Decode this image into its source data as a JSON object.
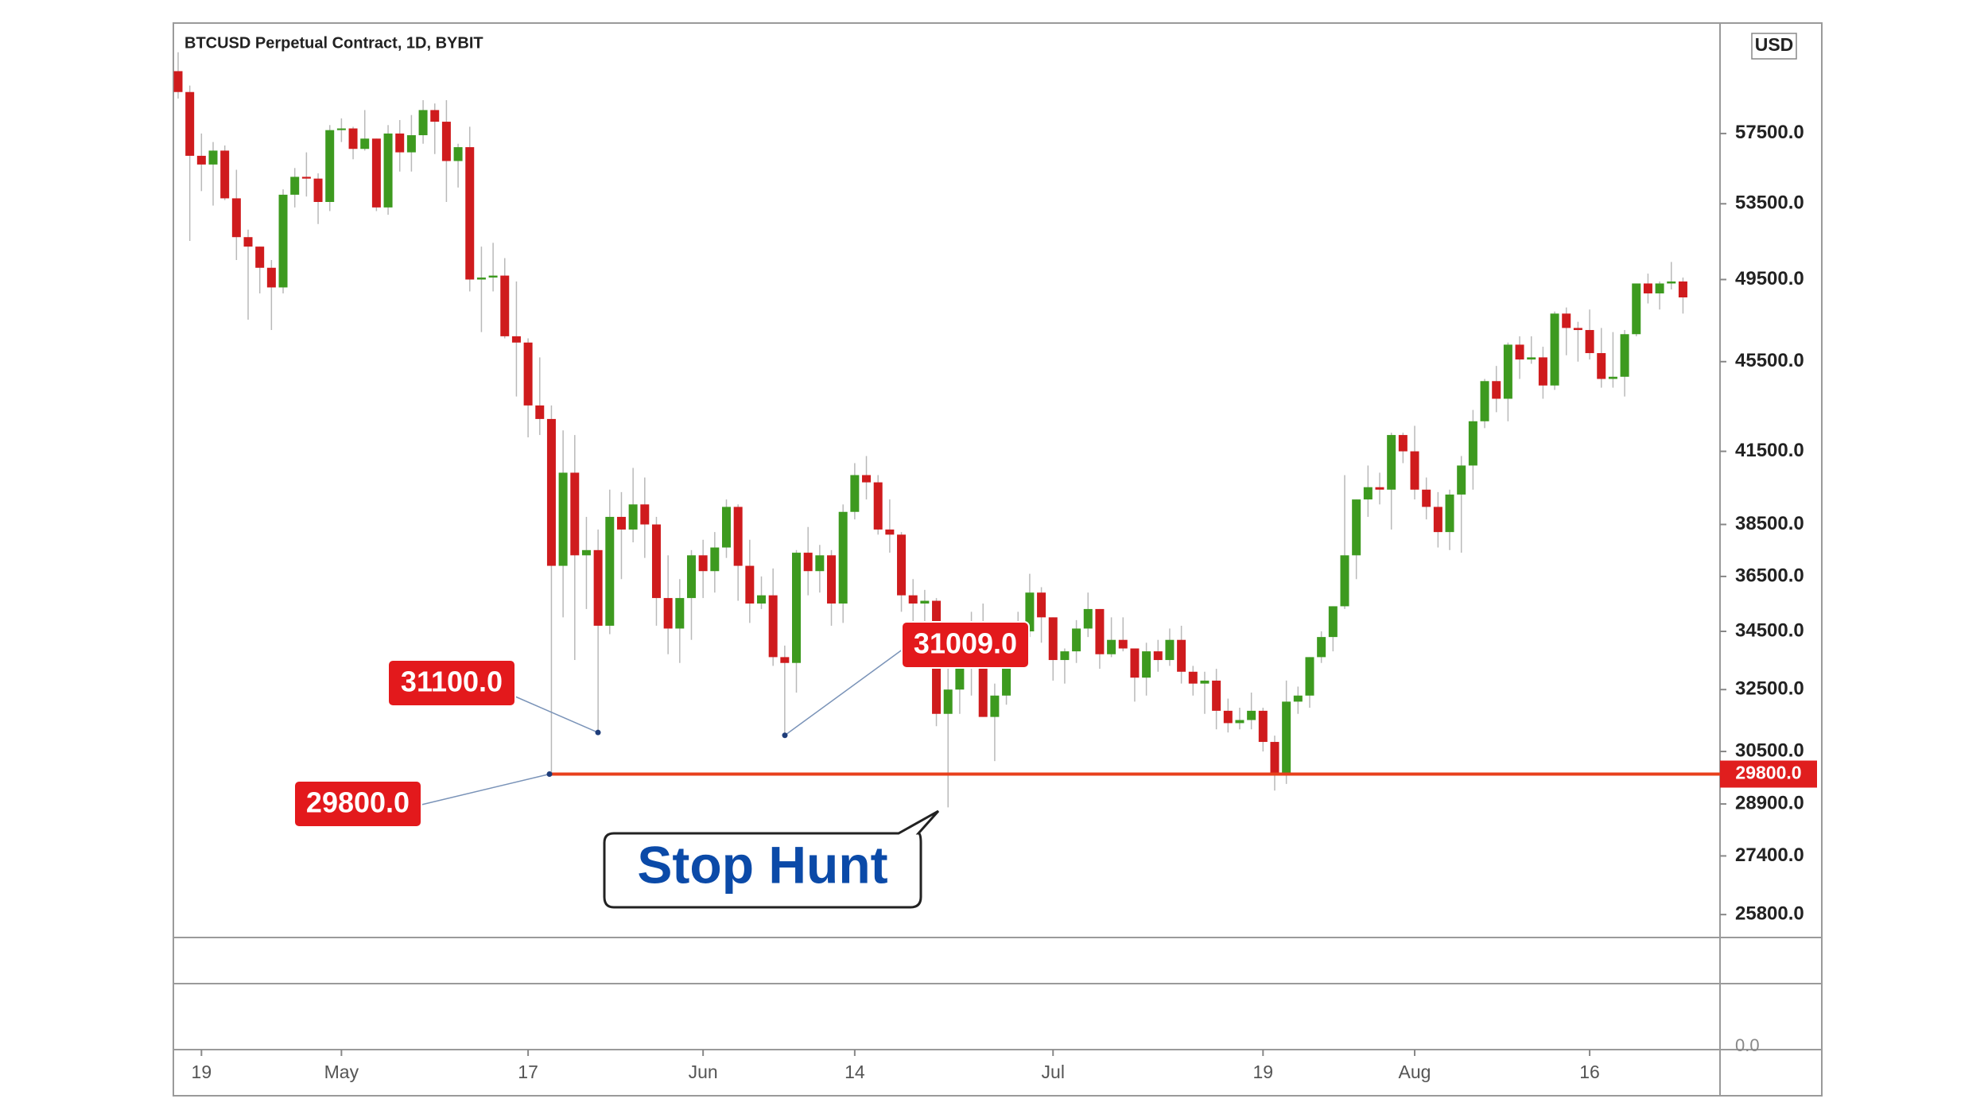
{
  "chart_data": {
    "type": "candlestick",
    "title": "BTCUSD Perpetual Contract, 1D, BYBIT",
    "currency": "USD",
    "up_color": "#3d9a1f",
    "down_color": "#cf1b1d",
    "log_scale": true,
    "ylim": [
      25200,
      64400
    ],
    "yticks": [
      {
        "value": 57500,
        "label": "57500.0"
      },
      {
        "value": 53500,
        "label": "53500.0"
      },
      {
        "value": 49500,
        "label": "49500.0"
      },
      {
        "value": 45500,
        "label": "45500.0"
      },
      {
        "value": 41500,
        "label": "41500.0"
      },
      {
        "value": 38500,
        "label": "38500.0"
      },
      {
        "value": 36500,
        "label": "36500.0"
      },
      {
        "value": 34500,
        "label": "34500.0"
      },
      {
        "value": 32500,
        "label": "32500.0"
      },
      {
        "value": 30500,
        "label": "30500.0"
      },
      {
        "value": 28900,
        "label": "28900.0"
      },
      {
        "value": 27400,
        "label": "27400.0"
      },
      {
        "value": 25800,
        "label": "25800.0"
      }
    ],
    "level": {
      "value": 29800,
      "label": "29800.0",
      "color": "#e8401c"
    },
    "lower_pane_tick": "0.0",
    "annotations": [
      {
        "value": 31100,
        "label": "31100.0"
      },
      {
        "value": 29800,
        "label": "29800.0"
      },
      {
        "value": 31009,
        "label": "31009.0"
      }
    ],
    "callout": "Stop Hunt",
    "categories": [
      null,
      null,
      "19",
      null,
      null,
      null,
      null,
      null,
      null,
      null,
      null,
      null,
      null,
      null,
      "May",
      null,
      null,
      null,
      null,
      null,
      null,
      null,
      null,
      null,
      null,
      null,
      null,
      null,
      null,
      null,
      "17",
      null,
      null,
      null,
      null,
      null,
      null,
      null,
      null,
      null,
      null,
      null,
      null,
      null,
      null,
      "Jun",
      null,
      null,
      null,
      null,
      null,
      null,
      null,
      null,
      null,
      null,
      null,
      null,
      "14",
      null,
      null,
      null,
      null,
      null,
      null,
      null,
      null,
      null,
      null,
      null,
      null,
      null,
      null,
      null,
      null,
      "Jul",
      null,
      null,
      null,
      null,
      null,
      null,
      null,
      null,
      null,
      null,
      null,
      null,
      null,
      null,
      null,
      null,
      null,
      "19",
      null,
      null,
      null,
      null,
      null,
      null,
      null,
      null,
      null,
      null,
      null,
      null,
      "Aug",
      null,
      null,
      null,
      null,
      null,
      null,
      null,
      null,
      null,
      null,
      null,
      null,
      null,
      null,
      "16",
      null,
      null,
      null,
      null,
      null,
      null,
      null,
      null
    ],
    "candles": [
      [
        61300,
        62500,
        59600,
        60000
      ],
      [
        60000,
        60400,
        51500,
        56200
      ],
      [
        56200,
        57500,
        54200,
        55700
      ],
      [
        55700,
        57000,
        53400,
        56500
      ],
      [
        56500,
        56800,
        53700,
        53800
      ],
      [
        53800,
        55400,
        50500,
        51700
      ],
      [
        51700,
        52100,
        47500,
        51200
      ],
      [
        51200,
        51200,
        48800,
        50100
      ],
      [
        50100,
        50500,
        47000,
        49100
      ],
      [
        49100,
        54300,
        48800,
        54000
      ],
      [
        54000,
        55500,
        53300,
        55000
      ],
      [
        55000,
        56400,
        53900,
        54900
      ],
      [
        54900,
        55200,
        52400,
        53600
      ],
      [
        53600,
        58000,
        53100,
        57700
      ],
      [
        57700,
        58400,
        57000,
        57800
      ],
      [
        57800,
        57900,
        56000,
        56600
      ],
      [
        56600,
        58900,
        56500,
        57200
      ],
      [
        57200,
        57200,
        53100,
        53300
      ],
      [
        53300,
        58000,
        52900,
        57500
      ],
      [
        57500,
        58300,
        55300,
        56400
      ],
      [
        56400,
        58600,
        55300,
        57400
      ],
      [
        57400,
        59500,
        56900,
        58900
      ],
      [
        58900,
        59300,
        56300,
        58200
      ],
      [
        58200,
        59500,
        53600,
        55900
      ],
      [
        55900,
        56900,
        54400,
        56700
      ],
      [
        56700,
        57900,
        48900,
        49500
      ],
      [
        49500,
        51200,
        46900,
        49600
      ],
      [
        49600,
        51400,
        48900,
        49700
      ],
      [
        49700,
        50600,
        46600,
        46700
      ],
      [
        46700,
        49400,
        43900,
        46400
      ],
      [
        46400,
        46600,
        42100,
        43500
      ],
      [
        43500,
        45700,
        42200,
        42900
      ],
      [
        42900,
        43500,
        29800,
        36900
      ],
      [
        36900,
        42400,
        35000,
        40600
      ],
      [
        40600,
        42200,
        33500,
        37300
      ],
      [
        37300,
        38800,
        35300,
        37500
      ],
      [
        37500,
        38300,
        31100,
        34700
      ],
      [
        34700,
        39900,
        34400,
        38800
      ],
      [
        38800,
        39800,
        36400,
        38300
      ],
      [
        38300,
        40800,
        37800,
        39300
      ],
      [
        39300,
        40400,
        37200,
        38500
      ],
      [
        38500,
        38800,
        34700,
        35700
      ],
      [
        35700,
        37300,
        33700,
        34600
      ],
      [
        34600,
        36400,
        33400,
        35700
      ],
      [
        35700,
        37500,
        34200,
        37300
      ],
      [
        37300,
        37900,
        35700,
        36700
      ],
      [
        36700,
        38200,
        35900,
        37600
      ],
      [
        37600,
        39500,
        37200,
        39200
      ],
      [
        39200,
        39300,
        35600,
        36900
      ],
      [
        36900,
        37900,
        34800,
        35500
      ],
      [
        35500,
        36500,
        35300,
        35800
      ],
      [
        35800,
        36800,
        33300,
        33600
      ],
      [
        33600,
        34000,
        31009,
        33400
      ],
      [
        33400,
        37500,
        32400,
        37400
      ],
      [
        37400,
        38400,
        35800,
        36700
      ],
      [
        36700,
        37700,
        35900,
        37300
      ],
      [
        37300,
        37500,
        34700,
        35500
      ],
      [
        35500,
        39300,
        34800,
        39000
      ],
      [
        39000,
        41000,
        38700,
        40500
      ],
      [
        40500,
        41300,
        39500,
        40200
      ],
      [
        40200,
        40500,
        38100,
        38300
      ],
      [
        38300,
        39500,
        37400,
        38100
      ],
      [
        38100,
        38200,
        35200,
        35800
      ],
      [
        35800,
        36400,
        34800,
        35500
      ],
      [
        35500,
        36000,
        33400,
        35600
      ],
      [
        35600,
        35700,
        31300,
        31700
      ],
      [
        31700,
        33300,
        28800,
        32500
      ],
      [
        32500,
        34800,
        31700,
        34000
      ],
      [
        34000,
        35200,
        32300,
        34700
      ],
      [
        34700,
        35500,
        31600,
        31600
      ],
      [
        31600,
        32700,
        30200,
        32300
      ],
      [
        32300,
        34700,
        32000,
        34600
      ],
      [
        34600,
        35200,
        33900,
        34500
      ],
      [
        34500,
        36600,
        34300,
        35900
      ],
      [
        35900,
        36100,
        34100,
        35000
      ],
      [
        35000,
        35000,
        32800,
        33500
      ],
      [
        33500,
        33900,
        32700,
        33800
      ],
      [
        33800,
        34900,
        33400,
        34600
      ],
      [
        34600,
        35900,
        34300,
        35300
      ],
      [
        35300,
        35300,
        33200,
        33700
      ],
      [
        33700,
        35000,
        33600,
        34200
      ],
      [
        34200,
        35000,
        33800,
        33900
      ],
      [
        33900,
        33900,
        32100,
        32900
      ],
      [
        32900,
        34100,
        32300,
        33800
      ],
      [
        33800,
        34200,
        33100,
        33500
      ],
      [
        33500,
        34600,
        33300,
        34200
      ],
      [
        34200,
        34700,
        32700,
        33100
      ],
      [
        33100,
        33300,
        32300,
        32700
      ],
      [
        32700,
        33100,
        31700,
        32800
      ],
      [
        32800,
        33200,
        31200,
        31800
      ],
      [
        31800,
        32200,
        31100,
        31400
      ],
      [
        31400,
        31900,
        31200,
        31500
      ],
      [
        31500,
        32400,
        31200,
        31800
      ],
      [
        31800,
        31900,
        30500,
        30800
      ],
      [
        30800,
        31000,
        29300,
        29800
      ],
      [
        29800,
        32800,
        29500,
        32100
      ],
      [
        32100,
        32600,
        31700,
        32300
      ],
      [
        32300,
        33600,
        31900,
        33600
      ],
      [
        33600,
        34500,
        33400,
        34300
      ],
      [
        34300,
        35400,
        33800,
        35400
      ],
      [
        35400,
        40500,
        35300,
        37300
      ],
      [
        37300,
        39500,
        36400,
        39500
      ],
      [
        39500,
        40900,
        38800,
        40000
      ],
      [
        40000,
        40600,
        39300,
        39900
      ],
      [
        39900,
        42300,
        38300,
        42200
      ],
      [
        42200,
        42300,
        41000,
        41500
      ],
      [
        41500,
        42600,
        39500,
        39900
      ],
      [
        39900,
        40400,
        38700,
        39200
      ],
      [
        39200,
        39800,
        37600,
        38200
      ],
      [
        38200,
        39900,
        37500,
        39700
      ],
      [
        39700,
        41300,
        37400,
        40900
      ],
      [
        40900,
        43300,
        39900,
        42800
      ],
      [
        42800,
        44700,
        42500,
        44600
      ],
      [
        44600,
        45300,
        43200,
        43800
      ],
      [
        43800,
        46400,
        42800,
        46300
      ],
      [
        46300,
        46700,
        44700,
        45600
      ],
      [
        45600,
        46700,
        45400,
        45700
      ],
      [
        45700,
        46200,
        43800,
        44400
      ],
      [
        44400,
        47900,
        44200,
        47800
      ],
      [
        47800,
        48100,
        45800,
        47100
      ],
      [
        47100,
        47400,
        45500,
        47000
      ],
      [
        47000,
        48000,
        45600,
        45900
      ],
      [
        45900,
        47100,
        44300,
        44700
      ],
      [
        44700,
        46900,
        44300,
        44800
      ],
      [
        44800,
        47000,
        43900,
        46800
      ],
      [
        46800,
        49300,
        46700,
        49300
      ],
      [
        49300,
        49800,
        48300,
        48800
      ],
      [
        48800,
        49400,
        48000,
        49300
      ],
      [
        49300,
        50400,
        49000,
        49400
      ],
      [
        49400,
        49600,
        47800,
        48600
      ]
    ]
  }
}
